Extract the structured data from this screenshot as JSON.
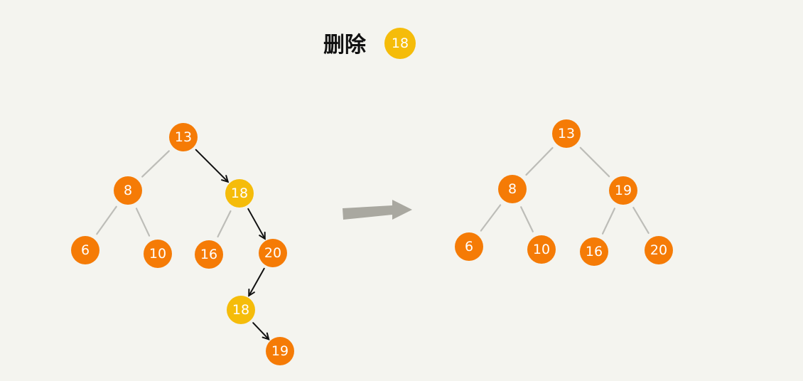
{
  "title": {
    "text": "删除",
    "target_value": "18"
  },
  "colors": {
    "background": "#f4f4ef",
    "node_orange": "#f57b06",
    "node_yellow": "#f5bc0a",
    "edge": "#bdbdb8",
    "big_arrow": "#a9a8a0",
    "path_arrow": "#111111"
  },
  "before_tree": {
    "nodes": [
      {
        "id": "b13",
        "label": "13",
        "color": "orange"
      },
      {
        "id": "b8",
        "label": "8",
        "color": "orange"
      },
      {
        "id": "b18",
        "label": "18",
        "color": "yellow"
      },
      {
        "id": "b6",
        "label": "6",
        "color": "orange"
      },
      {
        "id": "b10",
        "label": "10",
        "color": "orange"
      },
      {
        "id": "b16",
        "label": "16",
        "color": "orange"
      },
      {
        "id": "b20",
        "label": "20",
        "color": "orange"
      },
      {
        "id": "b18b",
        "label": "18",
        "color": "yellow"
      },
      {
        "id": "b19",
        "label": "19",
        "color": "orange"
      }
    ],
    "edges": [
      [
        "b13",
        "b8"
      ],
      [
        "b8",
        "b6"
      ],
      [
        "b8",
        "b10"
      ],
      [
        "b18",
        "b16"
      ]
    ],
    "path": [
      [
        "b13",
        "b18"
      ],
      [
        "b18",
        "b20"
      ],
      [
        "b20",
        "b18b"
      ],
      [
        "b18b",
        "b19"
      ]
    ]
  },
  "after_tree": {
    "nodes": [
      {
        "id": "a13",
        "label": "13",
        "color": "orange"
      },
      {
        "id": "a8",
        "label": "8",
        "color": "orange"
      },
      {
        "id": "a19",
        "label": "19",
        "color": "orange"
      },
      {
        "id": "a6",
        "label": "6",
        "color": "orange"
      },
      {
        "id": "a10",
        "label": "10",
        "color": "orange"
      },
      {
        "id": "a16",
        "label": "16",
        "color": "orange"
      },
      {
        "id": "a20",
        "label": "20",
        "color": "orange"
      }
    ],
    "edges": [
      [
        "a13",
        "a8"
      ],
      [
        "a13",
        "a19"
      ],
      [
        "a8",
        "a6"
      ],
      [
        "a8",
        "a10"
      ],
      [
        "a19",
        "a16"
      ],
      [
        "a19",
        "a20"
      ]
    ]
  }
}
